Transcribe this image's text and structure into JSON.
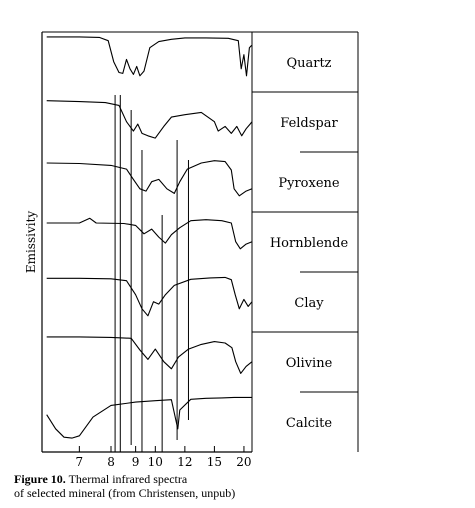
{
  "chart_data": {
    "type": "line",
    "title": "",
    "xlabel": "",
    "ylabel": "Emissivity",
    "x_ticks": [
      7,
      8,
      9,
      10,
      12,
      15,
      20
    ],
    "x_scale": "reciprocal (wavenumber spacing, labeled in micrometers)",
    "xlim": [
      6.1,
      22
    ],
    "grid": false,
    "legend": "labels in right-hand column",
    "reference_lines_um": [
      8.15,
      8.35,
      8.8,
      9.3,
      10.4,
      11.4,
      12.3
    ],
    "series": [
      {
        "name": "Quartz",
        "points": [
          [
            6.2,
            0.98
          ],
          [
            7.0,
            0.98
          ],
          [
            7.6,
            0.97
          ],
          [
            7.9,
            0.9
          ],
          [
            8.1,
            0.45
          ],
          [
            8.3,
            0.22
          ],
          [
            8.45,
            0.2
          ],
          [
            8.6,
            0.5
          ],
          [
            8.75,
            0.3
          ],
          [
            8.9,
            0.18
          ],
          [
            9.05,
            0.35
          ],
          [
            9.2,
            0.15
          ],
          [
            9.4,
            0.25
          ],
          [
            9.7,
            0.75
          ],
          [
            10.2,
            0.88
          ],
          [
            11,
            0.93
          ],
          [
            12,
            0.96
          ],
          [
            14,
            0.96
          ],
          [
            17,
            0.95
          ],
          [
            18.8,
            0.9
          ],
          [
            19.4,
            0.3
          ],
          [
            20,
            0.6
          ],
          [
            20.6,
            0.15
          ],
          [
            21.3,
            0.75
          ],
          [
            21.9,
            0.8
          ]
        ]
      },
      {
        "name": "Feldspar",
        "points": [
          [
            6.2,
            0.9
          ],
          [
            7.0,
            0.88
          ],
          [
            7.8,
            0.86
          ],
          [
            8.3,
            0.8
          ],
          [
            8.6,
            0.45
          ],
          [
            8.9,
            0.25
          ],
          [
            9.1,
            0.4
          ],
          [
            9.3,
            0.2
          ],
          [
            9.6,
            0.15
          ],
          [
            10.0,
            0.1
          ],
          [
            10.5,
            0.35
          ],
          [
            11,
            0.55
          ],
          [
            12,
            0.6
          ],
          [
            13.5,
            0.65
          ],
          [
            15,
            0.45
          ],
          [
            15.5,
            0.25
          ],
          [
            16.5,
            0.35
          ],
          [
            17.5,
            0.2
          ],
          [
            18.5,
            0.35
          ],
          [
            19.5,
            0.15
          ],
          [
            20.5,
            0.3
          ],
          [
            21.5,
            0.4
          ],
          [
            22,
            0.45
          ]
        ]
      },
      {
        "name": "Pyroxene",
        "points": [
          [
            6.2,
            0.85
          ],
          [
            7.0,
            0.84
          ],
          [
            8.0,
            0.8
          ],
          [
            8.6,
            0.72
          ],
          [
            8.9,
            0.5
          ],
          [
            9.2,
            0.3
          ],
          [
            9.5,
            0.25
          ],
          [
            9.8,
            0.45
          ],
          [
            10.2,
            0.5
          ],
          [
            10.7,
            0.3
          ],
          [
            11.2,
            0.2
          ],
          [
            11.6,
            0.45
          ],
          [
            12.2,
            0.72
          ],
          [
            13.5,
            0.85
          ],
          [
            15,
            0.9
          ],
          [
            16.5,
            0.88
          ],
          [
            17.5,
            0.7
          ],
          [
            18,
            0.3
          ],
          [
            19,
            0.15
          ],
          [
            20.5,
            0.25
          ],
          [
            22,
            0.3
          ]
        ]
      },
      {
        "name": "Hornblende",
        "points": [
          [
            6.2,
            0.85
          ],
          [
            7.0,
            0.85
          ],
          [
            7.3,
            0.95
          ],
          [
            7.5,
            0.85
          ],
          [
            8.5,
            0.84
          ],
          [
            9.0,
            0.8
          ],
          [
            9.4,
            0.62
          ],
          [
            9.8,
            0.72
          ],
          [
            10.2,
            0.55
          ],
          [
            10.6,
            0.42
          ],
          [
            11.0,
            0.6
          ],
          [
            11.6,
            0.75
          ],
          [
            12.5,
            0.9
          ],
          [
            14,
            0.92
          ],
          [
            16,
            0.9
          ],
          [
            17.5,
            0.85
          ],
          [
            18.3,
            0.45
          ],
          [
            19.2,
            0.3
          ],
          [
            20.5,
            0.4
          ],
          [
            22,
            0.45
          ]
        ]
      },
      {
        "name": "Clay",
        "points": [
          [
            6.2,
            0.95
          ],
          [
            7.0,
            0.95
          ],
          [
            8.0,
            0.94
          ],
          [
            8.6,
            0.9
          ],
          [
            9.0,
            0.6
          ],
          [
            9.3,
            0.3
          ],
          [
            9.6,
            0.15
          ],
          [
            9.9,
            0.45
          ],
          [
            10.2,
            0.4
          ],
          [
            10.6,
            0.6
          ],
          [
            11.2,
            0.8
          ],
          [
            12.5,
            0.93
          ],
          [
            14.5,
            0.96
          ],
          [
            16.5,
            0.97
          ],
          [
            17.5,
            0.92
          ],
          [
            18.2,
            0.6
          ],
          [
            19.0,
            0.3
          ],
          [
            20,
            0.5
          ],
          [
            21,
            0.35
          ],
          [
            22,
            0.45
          ]
        ]
      },
      {
        "name": "Olivine",
        "points": [
          [
            6.2,
            0.98
          ],
          [
            7.0,
            0.98
          ],
          [
            8.0,
            0.97
          ],
          [
            8.8,
            0.95
          ],
          [
            9.2,
            0.7
          ],
          [
            9.6,
            0.5
          ],
          [
            10.0,
            0.72
          ],
          [
            10.5,
            0.45
          ],
          [
            11,
            0.3
          ],
          [
            11.5,
            0.55
          ],
          [
            12.3,
            0.72
          ],
          [
            13.5,
            0.82
          ],
          [
            15,
            0.88
          ],
          [
            16.5,
            0.85
          ],
          [
            17.6,
            0.75
          ],
          [
            18.3,
            0.45
          ],
          [
            19.3,
            0.2
          ],
          [
            20.5,
            0.35
          ],
          [
            22,
            0.45
          ]
        ]
      },
      {
        "name": "Calcite",
        "points": [
          [
            6.2,
            0.6
          ],
          [
            6.4,
            0.3
          ],
          [
            6.6,
            0.12
          ],
          [
            6.8,
            0.1
          ],
          [
            7.0,
            0.15
          ],
          [
            7.4,
            0.55
          ],
          [
            8.0,
            0.8
          ],
          [
            9.0,
            0.87
          ],
          [
            10.0,
            0.9
          ],
          [
            11.0,
            0.92
          ],
          [
            11.3,
            0.5
          ],
          [
            11.45,
            0.3
          ],
          [
            11.6,
            0.7
          ],
          [
            12.5,
            0.93
          ],
          [
            14,
            0.95
          ],
          [
            16,
            0.96
          ],
          [
            18,
            0.97
          ],
          [
            22,
            0.97
          ]
        ]
      }
    ]
  },
  "caption": {
    "figure_label": "Figure 10.",
    "line1": "Thermal infrared spectra",
    "line2": "of selected mineral (from Christensen, unpub)"
  }
}
